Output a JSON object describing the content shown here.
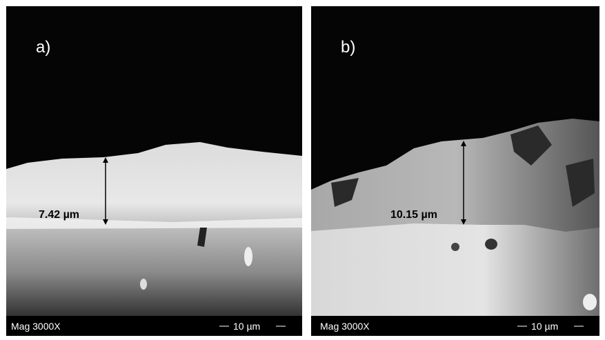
{
  "panels": [
    {
      "label": "a)",
      "measurement": "7.42 µm",
      "magnification": "Mag 3000X",
      "scale_bar": "10 µm"
    },
    {
      "label": "b)",
      "measurement": "10.15 µm",
      "magnification": "Mag 3000X",
      "scale_bar": "10 µm"
    }
  ]
}
